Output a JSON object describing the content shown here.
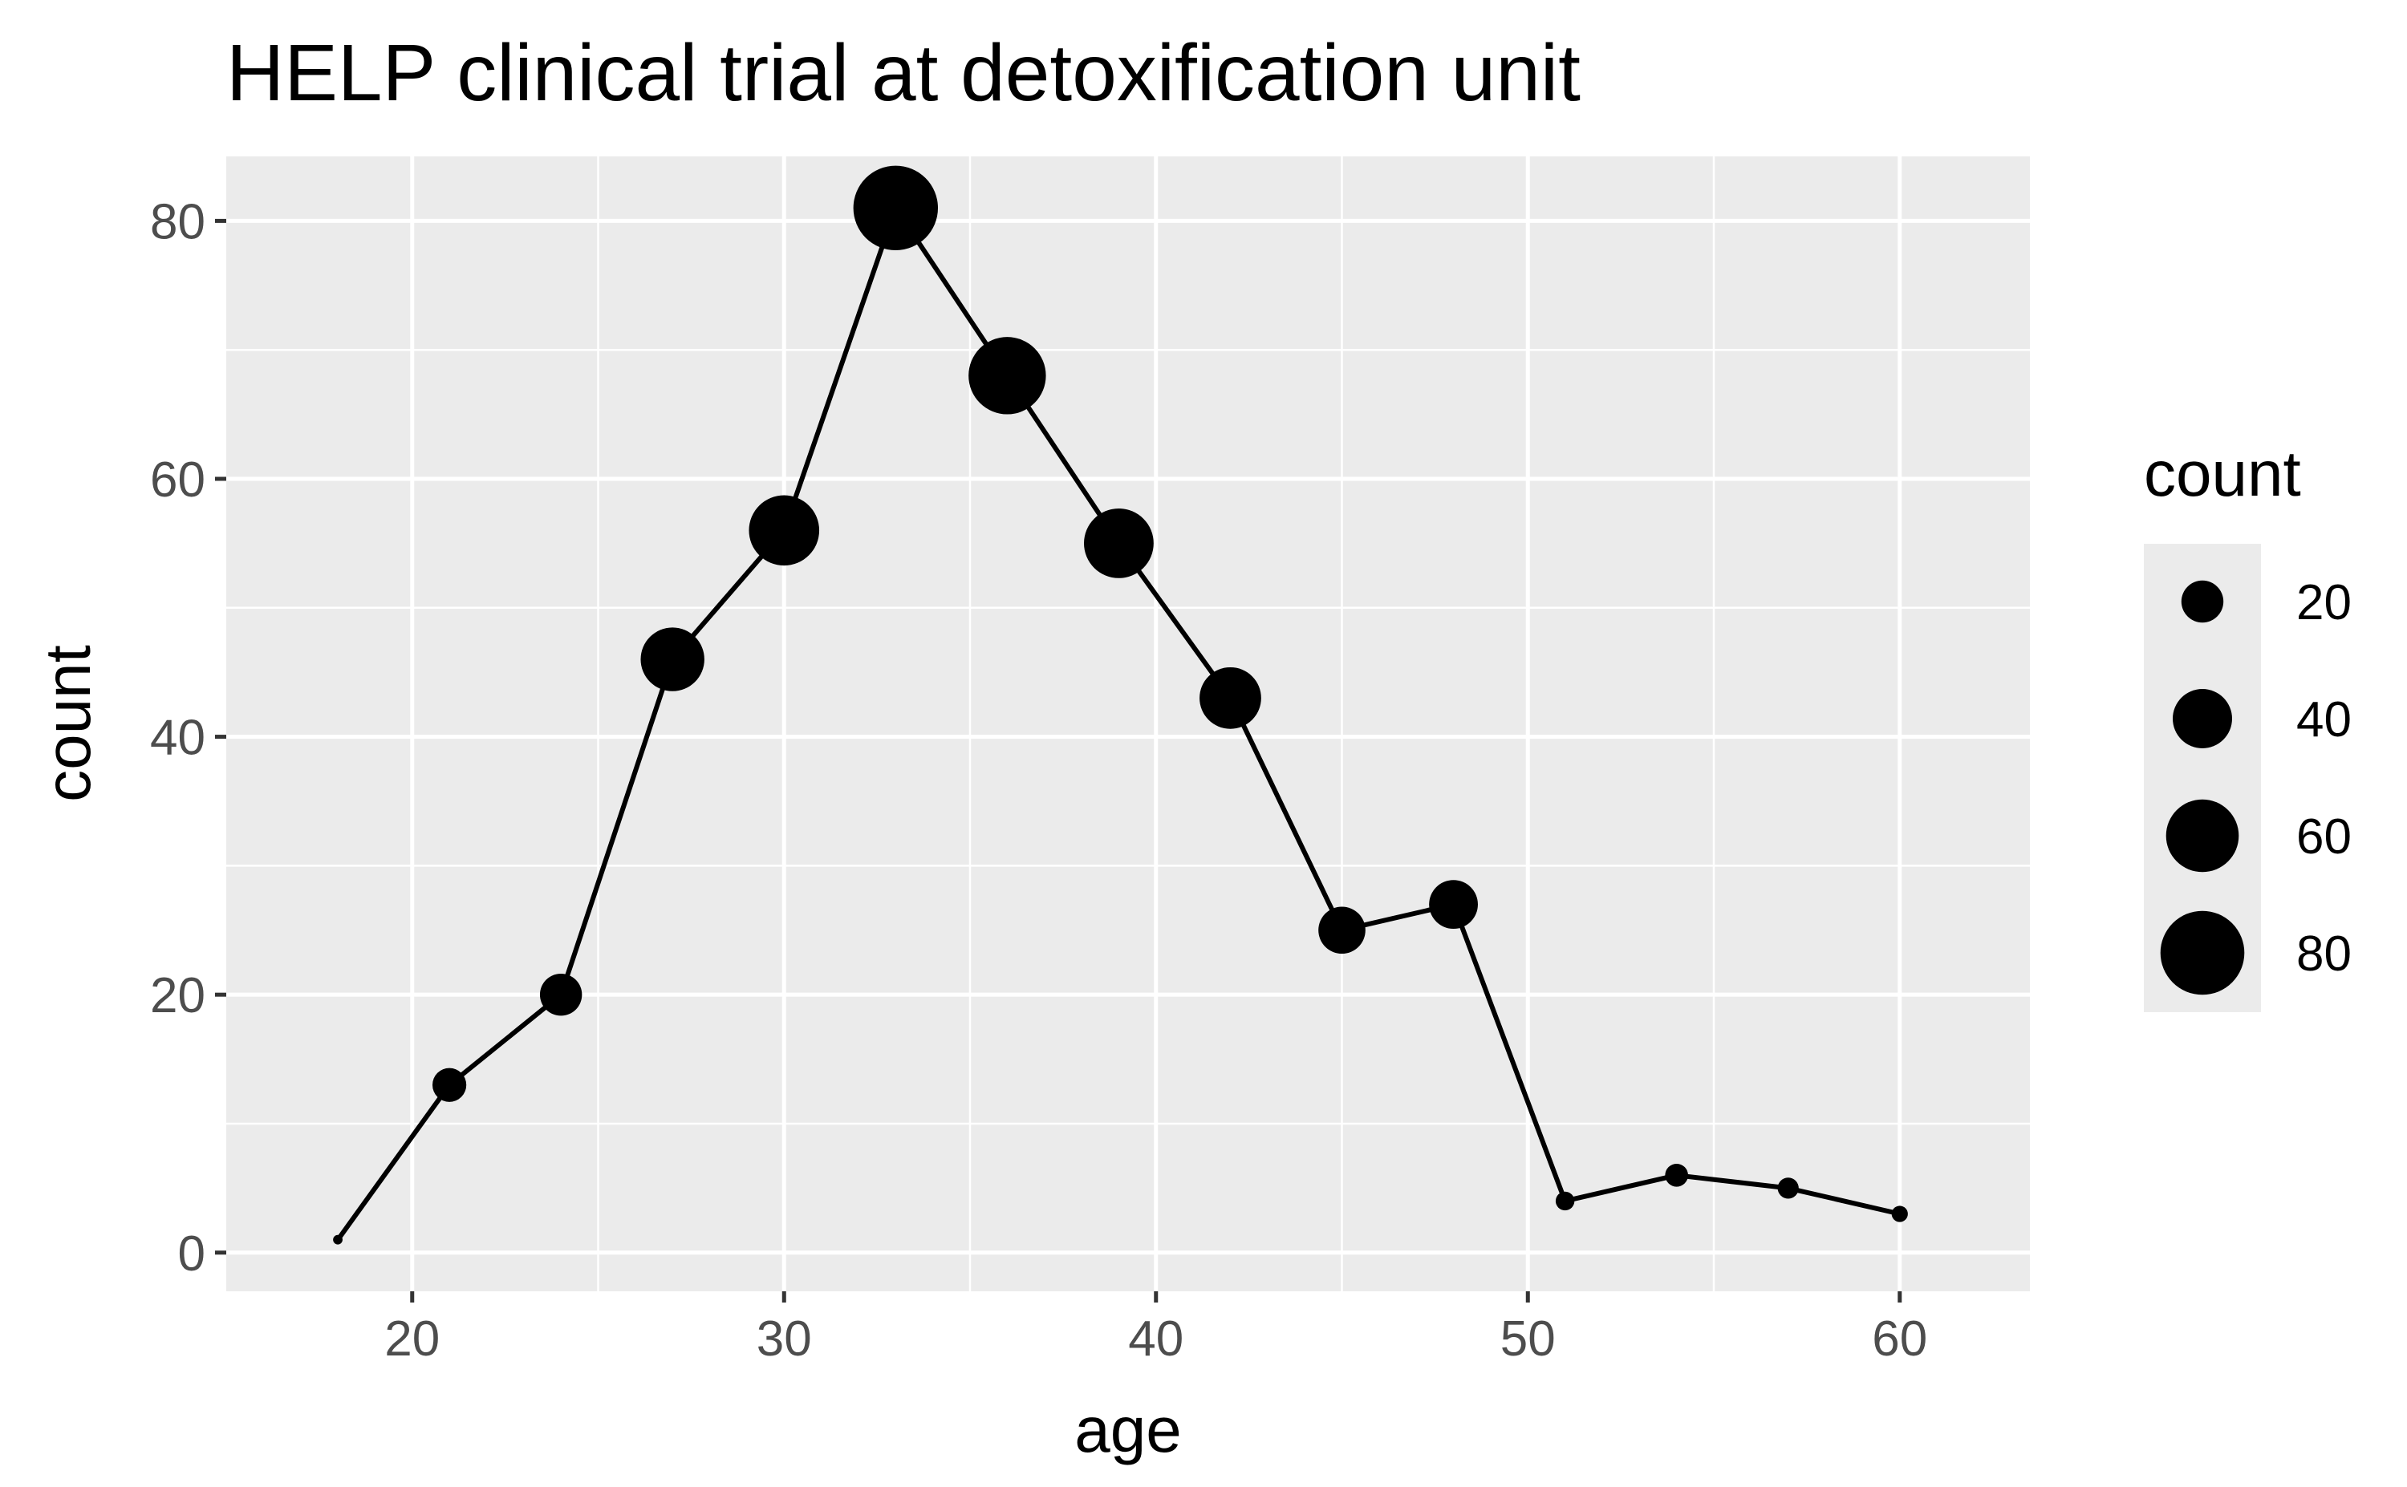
{
  "chart_data": {
    "type": "line",
    "title": "HELP clinical trial at detoxification unit",
    "xlabel": "age",
    "ylabel": "count",
    "xlim": [
      15,
      63.5
    ],
    "ylim": [
      -3,
      85
    ],
    "x_ticks": [
      20,
      30,
      40,
      50,
      60
    ],
    "y_ticks": [
      0,
      20,
      40,
      60,
      80
    ],
    "grid": true,
    "points": [
      {
        "x": 18,
        "y": 1
      },
      {
        "x": 21,
        "y": 13
      },
      {
        "x": 24,
        "y": 20
      },
      {
        "x": 27,
        "y": 46
      },
      {
        "x": 30,
        "y": 56
      },
      {
        "x": 33,
        "y": 81
      },
      {
        "x": 36,
        "y": 68
      },
      {
        "x": 39,
        "y": 55
      },
      {
        "x": 42,
        "y": 43
      },
      {
        "x": 45,
        "y": 25
      },
      {
        "x": 48,
        "y": 27
      },
      {
        "x": 51,
        "y": 4
      },
      {
        "x": 54,
        "y": 6
      },
      {
        "x": 57,
        "y": 5
      },
      {
        "x": 60,
        "y": 3
      }
    ],
    "point_size_encoding": "count",
    "legend": {
      "title": "count",
      "position": "right",
      "entries": [
        20,
        40,
        60,
        80
      ]
    },
    "colors": {
      "panel_background": "#ebebeb",
      "grid": "#ffffff",
      "line": "#000000",
      "points": "#000000"
    }
  }
}
